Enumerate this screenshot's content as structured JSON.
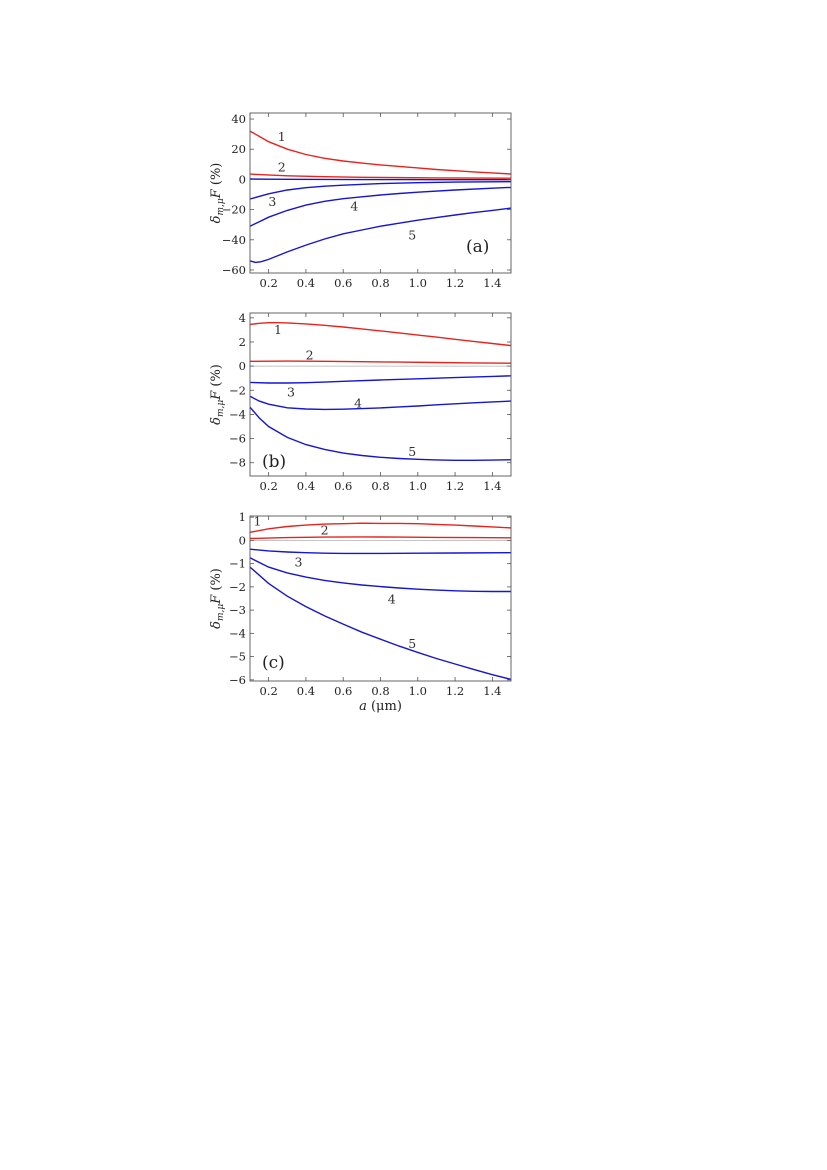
{
  "colors": {
    "red": "#e8231e",
    "blue": "#1515d2",
    "axis": "#555555",
    "zero": "#b0b0b0"
  },
  "chart_data": [
    {
      "type": "line",
      "panel_label": "(a)",
      "ylabel": {
        "base": "δ",
        "sub": "m,μ",
        "main": "F",
        "unit": " (%)"
      },
      "xlabel": null,
      "xlim": [
        0.1,
        1.5
      ],
      "ylim": [
        -62,
        44
      ],
      "xticks": [
        "0.2",
        "0.4",
        "0.6",
        "0.8",
        "1.0",
        "1.2",
        "1.4"
      ],
      "yticks": [
        "-60",
        "-40",
        "-20",
        "0",
        "20",
        "40"
      ],
      "series": [
        {
          "name": "1",
          "color": "red",
          "x": [
            0.1,
            0.15,
            0.2,
            0.3,
            0.4,
            0.5,
            0.6,
            0.7,
            0.8,
            0.9,
            1.0,
            1.1,
            1.2,
            1.3,
            1.4,
            1.5
          ],
          "y": [
            32,
            28.5,
            25,
            20,
            16.5,
            14,
            12.2,
            10.8,
            9.6,
            8.6,
            7.6,
            6.6,
            5.8,
            5,
            4.3,
            3.6
          ]
        },
        {
          "name": "2",
          "color": "red",
          "x": [
            0.1,
            0.3,
            0.5,
            0.7,
            0.9,
            1.1,
            1.3,
            1.5
          ],
          "y": [
            3.5,
            2.4,
            1.8,
            1.4,
            1.2,
            1.0,
            0.9,
            0.8
          ]
        },
        {
          "name": "",
          "color": "blue",
          "x": [
            0.1,
            0.3,
            0.5,
            0.7,
            0.9,
            1.1,
            1.3,
            1.5
          ],
          "y": [
            0.3,
            0.1,
            0.0,
            -0.1,
            -0.15,
            -0.2,
            -0.2,
            -0.2
          ]
        },
        {
          "name": "3",
          "color": "blue",
          "x": [
            0.1,
            0.2,
            0.3,
            0.4,
            0.5,
            0.6,
            0.8,
            1.0,
            1.2,
            1.5
          ],
          "y": [
            -13,
            -9.5,
            -7,
            -5.5,
            -4.5,
            -3.8,
            -2.8,
            -2.2,
            -1.8,
            -1.5
          ]
        },
        {
          "name": "4",
          "color": "blue",
          "x": [
            0.1,
            0.15,
            0.2,
            0.3,
            0.4,
            0.5,
            0.6,
            0.7,
            0.8,
            0.9,
            1.0,
            1.2,
            1.4,
            1.5
          ],
          "y": [
            -31,
            -28,
            -25,
            -20.5,
            -17,
            -14.5,
            -12.8,
            -11.5,
            -10.3,
            -9.3,
            -8.5,
            -7,
            -5.8,
            -5.3
          ]
        },
        {
          "name": "5",
          "color": "blue",
          "x": [
            0.1,
            0.13,
            0.16,
            0.2,
            0.25,
            0.3,
            0.4,
            0.5,
            0.6,
            0.7,
            0.8,
            0.9,
            1.0,
            1.1,
            1.2,
            1.3,
            1.4,
            1.5
          ],
          "y": [
            -54,
            -55,
            -54.5,
            -53,
            -50.5,
            -48,
            -43.5,
            -39.5,
            -36,
            -33.5,
            -31,
            -29,
            -27,
            -25.3,
            -23.6,
            -22,
            -20.5,
            -19
          ]
        }
      ],
      "curve_labels": [
        {
          "text": "1",
          "x": 0.27,
          "y": 28
        },
        {
          "text": "2",
          "x": 0.27,
          "y": 8
        },
        {
          "text": "3",
          "x": 0.22,
          "y": -15
        },
        {
          "text": "4",
          "x": 0.66,
          "y": -18
        },
        {
          "text": "5",
          "x": 0.97,
          "y": -37
        }
      ]
    },
    {
      "type": "line",
      "panel_label": "(b)",
      "ylabel": {
        "base": "δ",
        "sub": "m,μ",
        "main": "F",
        "unit": " (%)"
      },
      "xlabel": null,
      "xlim": [
        0.1,
        1.5
      ],
      "ylim": [
        -9.1,
        4.4
      ],
      "xticks": [
        "0.2",
        "0.4",
        "0.6",
        "0.8",
        "1.0",
        "1.2",
        "1.4"
      ],
      "yticks": [
        "-8",
        "-6",
        "-4",
        "-2",
        "0",
        "2",
        "4"
      ],
      "series": [
        {
          "name": "1",
          "color": "red",
          "x": [
            0.1,
            0.15,
            0.2,
            0.25,
            0.3,
            0.4,
            0.5,
            0.6,
            0.7,
            0.8,
            0.9,
            1.0,
            1.1,
            1.2,
            1.3,
            1.4,
            1.5
          ],
          "y": [
            3.45,
            3.55,
            3.6,
            3.6,
            3.58,
            3.5,
            3.38,
            3.24,
            3.08,
            2.92,
            2.75,
            2.57,
            2.4,
            2.22,
            2.05,
            1.87,
            1.7
          ]
        },
        {
          "name": "2",
          "color": "red",
          "x": [
            0.1,
            0.3,
            0.5,
            0.7,
            0.9,
            1.1,
            1.3,
            1.5
          ],
          "y": [
            0.4,
            0.42,
            0.4,
            0.37,
            0.33,
            0.3,
            0.27,
            0.24
          ]
        },
        {
          "name": "3",
          "color": "blue",
          "x": [
            0.1,
            0.2,
            0.3,
            0.4,
            0.5,
            0.6,
            0.8,
            1.0,
            1.2,
            1.4,
            1.5
          ],
          "y": [
            -1.35,
            -1.4,
            -1.4,
            -1.37,
            -1.32,
            -1.26,
            -1.15,
            -1.05,
            -0.95,
            -0.85,
            -0.8
          ]
        },
        {
          "name": "4",
          "color": "blue",
          "x": [
            0.1,
            0.15,
            0.2,
            0.3,
            0.4,
            0.5,
            0.6,
            0.7,
            0.8,
            0.9,
            1.0,
            1.1,
            1.2,
            1.3,
            1.4,
            1.5
          ],
          "y": [
            -2.5,
            -2.9,
            -3.15,
            -3.45,
            -3.55,
            -3.58,
            -3.57,
            -3.52,
            -3.46,
            -3.38,
            -3.3,
            -3.2,
            -3.12,
            -3.04,
            -2.96,
            -2.9
          ]
        },
        {
          "name": "5",
          "color": "blue",
          "x": [
            0.1,
            0.15,
            0.2,
            0.3,
            0.4,
            0.5,
            0.6,
            0.7,
            0.8,
            0.9,
            1.0,
            1.1,
            1.2,
            1.3,
            1.4,
            1.5
          ],
          "y": [
            -3.4,
            -4.3,
            -5,
            -5.9,
            -6.5,
            -6.9,
            -7.2,
            -7.4,
            -7.55,
            -7.65,
            -7.72,
            -7.77,
            -7.8,
            -7.8,
            -7.78,
            -7.76
          ]
        }
      ],
      "curve_labels": [
        {
          "text": "1",
          "x": 0.25,
          "y": 3.0
        },
        {
          "text": "2",
          "x": 0.42,
          "y": 0.9
        },
        {
          "text": "3",
          "x": 0.32,
          "y": -2.2
        },
        {
          "text": "4",
          "x": 0.68,
          "y": -3.1
        },
        {
          "text": "5",
          "x": 0.97,
          "y": -7.1
        }
      ]
    },
    {
      "type": "line",
      "panel_label": "(c)",
      "ylabel": {
        "base": "δ",
        "sub": "m,μ",
        "main": "F",
        "unit": " (%)"
      },
      "xlabel": {
        "var": "a",
        "unit": " (μm)"
      },
      "xlim": [
        0.1,
        1.5
      ],
      "ylim": [
        -6.05,
        1.05
      ],
      "xticks": [
        "0.2",
        "0.4",
        "0.6",
        "0.8",
        "1.0",
        "1.2",
        "1.4"
      ],
      "yticks": [
        "-6",
        "-5",
        "-4",
        "-3",
        "-2",
        "-1",
        "0",
        "1"
      ],
      "series": [
        {
          "name": "1",
          "color": "red",
          "x": [
            0.1,
            0.2,
            0.3,
            0.4,
            0.5,
            0.6,
            0.7,
            0.8,
            0.9,
            1.0,
            1.1,
            1.2,
            1.3,
            1.4,
            1.5
          ],
          "y": [
            0.35,
            0.5,
            0.6,
            0.66,
            0.7,
            0.72,
            0.74,
            0.73,
            0.73,
            0.72,
            0.69,
            0.66,
            0.62,
            0.58,
            0.54
          ]
        },
        {
          "name": "2",
          "color": "red",
          "x": [
            0.1,
            0.3,
            0.5,
            0.7,
            0.9,
            1.1,
            1.3,
            1.5
          ],
          "y": [
            0.08,
            0.12,
            0.14,
            0.15,
            0.14,
            0.13,
            0.12,
            0.11
          ]
        },
        {
          "name": "3",
          "color": "blue",
          "x": [
            0.1,
            0.2,
            0.3,
            0.4,
            0.5,
            0.6,
            0.8,
            1.0,
            1.2,
            1.5
          ],
          "y": [
            -0.38,
            -0.45,
            -0.5,
            -0.53,
            -0.55,
            -0.56,
            -0.56,
            -0.55,
            -0.54,
            -0.53
          ]
        },
        {
          "name": "4",
          "color": "blue",
          "x": [
            0.1,
            0.2,
            0.3,
            0.4,
            0.5,
            0.6,
            0.7,
            0.8,
            0.9,
            1.0,
            1.1,
            1.2,
            1.3,
            1.4,
            1.5
          ],
          "y": [
            -0.75,
            -1.15,
            -1.4,
            -1.58,
            -1.72,
            -1.83,
            -1.92,
            -1.99,
            -2.05,
            -2.1,
            -2.14,
            -2.17,
            -2.19,
            -2.2,
            -2.2
          ]
        },
        {
          "name": "5",
          "color": "blue",
          "x": [
            0.1,
            0.2,
            0.3,
            0.4,
            0.5,
            0.6,
            0.7,
            0.8,
            0.9,
            1.0,
            1.1,
            1.2,
            1.3,
            1.4,
            1.5
          ],
          "y": [
            -1.15,
            -1.85,
            -2.4,
            -2.85,
            -3.25,
            -3.6,
            -3.95,
            -4.25,
            -4.55,
            -4.82,
            -5.08,
            -5.32,
            -5.55,
            -5.78,
            -5.98
          ]
        }
      ],
      "curve_labels": [
        {
          "text": "1",
          "x": 0.14,
          "y": 0.82
        },
        {
          "text": "2",
          "x": 0.5,
          "y": 0.42
        },
        {
          "text": "3",
          "x": 0.36,
          "y": -0.95
        },
        {
          "text": "4",
          "x": 0.86,
          "y": -2.55
        },
        {
          "text": "5",
          "x": 0.97,
          "y": -4.45
        }
      ]
    }
  ]
}
